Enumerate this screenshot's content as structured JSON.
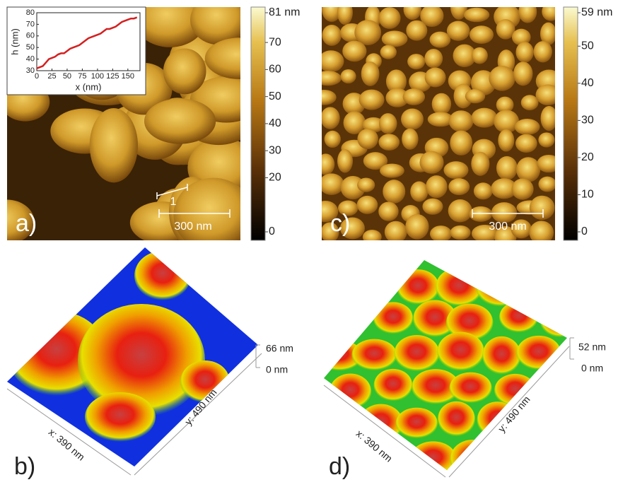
{
  "panels": {
    "a": {
      "label": "a)",
      "scale_bar": "300 nm",
      "profile_label": "1",
      "colorbar": {
        "ticks": [
          {
            "value": 81,
            "label": "81 nm"
          },
          70,
          60,
          50,
          40,
          30,
          20,
          0
        ]
      },
      "inset": {
        "type": "line",
        "x_label": "x (nm)",
        "y_label": "h (nm)",
        "color": "#d42020",
        "x": [
          0,
          5,
          10,
          15,
          20,
          25,
          30,
          35,
          40,
          45,
          50,
          55,
          60,
          65,
          70,
          75,
          80,
          85,
          90,
          95,
          100,
          105,
          110,
          115,
          120,
          125,
          130,
          135,
          140,
          145,
          150,
          155,
          160,
          165
        ],
        "values": [
          32,
          33,
          34,
          37,
          40,
          41,
          42,
          44,
          45,
          45,
          47,
          49,
          50,
          51,
          52,
          54,
          56,
          58,
          59,
          60,
          61,
          62,
          64,
          66,
          66,
          67,
          68,
          70,
          72,
          73,
          74,
          75,
          75,
          76
        ],
        "xlim": [
          0,
          170
        ],
        "ylim": [
          30,
          80
        ],
        "xticks": [
          0,
          25,
          50,
          75,
          100,
          125,
          150
        ],
        "yticks": [
          30,
          40,
          50,
          60,
          70,
          80
        ]
      }
    },
    "b": {
      "label": "b)",
      "z_top": "66 nm",
      "z_bottom": "0 nm",
      "x_axis": "x: 390 nm",
      "y_axis": "y: 490 nm"
    },
    "c": {
      "label": "c)",
      "scale_bar": "300 nm",
      "colorbar": {
        "ticks": [
          {
            "value": 59,
            "label": "59 nm"
          },
          50,
          40,
          30,
          20,
          10,
          0
        ]
      }
    },
    "d": {
      "label": "d)",
      "z_top": "52 nm",
      "z_bottom": "0 nm",
      "x_axis": "x: 390 nm",
      "y_axis": "y: 490 nm"
    }
  }
}
